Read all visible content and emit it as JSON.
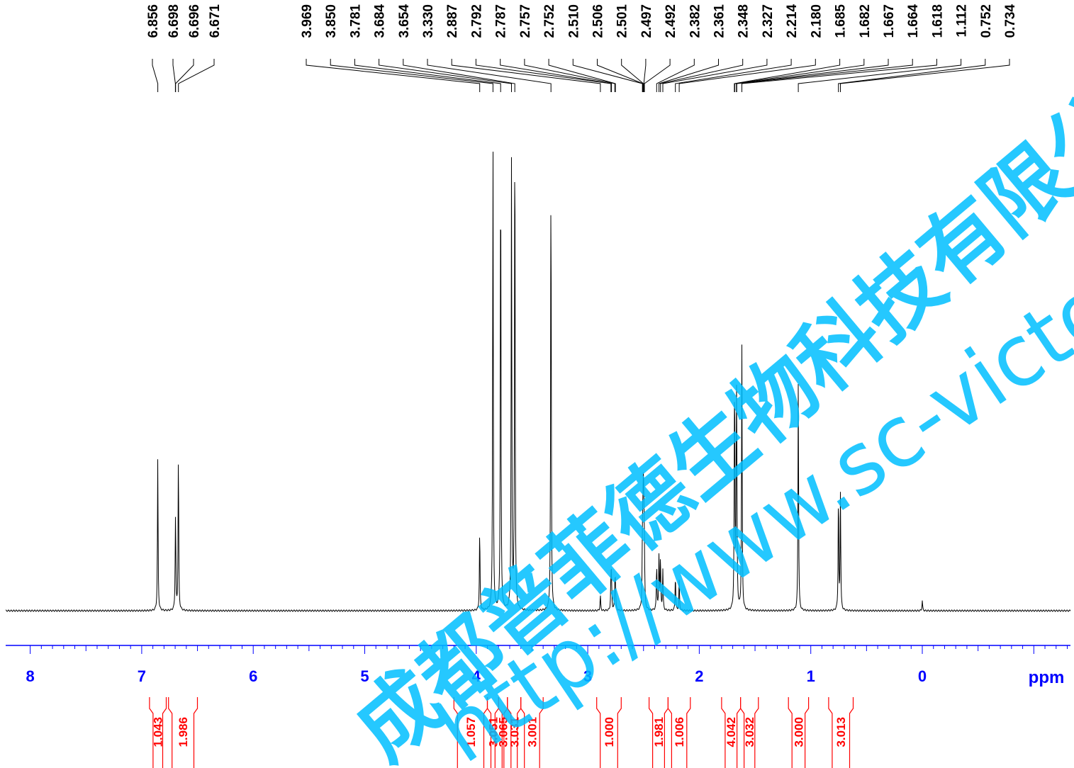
{
  "chart_data": {
    "type": "line",
    "xlabel": "ppm",
    "ylabel": "",
    "xlim": [
      8.35,
      -1.35
    ],
    "x_axis_reversed": true,
    "x_ticks": [
      8,
      7,
      6,
      5,
      4,
      3,
      2,
      1,
      0
    ],
    "grid": false,
    "legend": "none",
    "colors": {
      "spectrum": "#000000",
      "axis": "#0000ff",
      "integrals": "#ff0000",
      "peak_labels": "#000000",
      "watermark": "#00bfff"
    },
    "peak_labels": [
      "6.856",
      "6.698",
      "6.696",
      "6.671",
      "3.969",
      "3.850",
      "3.781",
      "3.684",
      "3.654",
      "3.330",
      "2.887",
      "2.792",
      "2.787",
      "2.757",
      "2.752",
      "2.510",
      "2.506",
      "2.501",
      "2.497",
      "2.492",
      "2.382",
      "2.361",
      "2.348",
      "2.327",
      "2.214",
      "2.180",
      "1.685",
      "1.682",
      "1.667",
      "1.664",
      "1.618",
      "1.112",
      "0.752",
      "0.734"
    ],
    "peaks": [
      {
        "ppm": 6.856,
        "height": 0.3
      },
      {
        "ppm": 6.698,
        "height": 0.1
      },
      {
        "ppm": 6.696,
        "height": 0.1
      },
      {
        "ppm": 6.671,
        "height": 0.31
      },
      {
        "ppm": 3.969,
        "height": 0.16
      },
      {
        "ppm": 3.85,
        "height": 0.94
      },
      {
        "ppm": 3.781,
        "height": 0.93
      },
      {
        "ppm": 3.684,
        "height": 0.88
      },
      {
        "ppm": 3.654,
        "height": 1.0
      },
      {
        "ppm": 3.33,
        "height": 0.89
      },
      {
        "ppm": 2.887,
        "height": 0.03
      },
      {
        "ppm": 2.792,
        "height": 0.06
      },
      {
        "ppm": 2.787,
        "height": 0.06
      },
      {
        "ppm": 2.757,
        "height": 0.05
      },
      {
        "ppm": 2.752,
        "height": 0.05
      },
      {
        "ppm": 2.51,
        "height": 0.09
      },
      {
        "ppm": 2.506,
        "height": 0.13
      },
      {
        "ppm": 2.501,
        "height": 0.17
      },
      {
        "ppm": 2.497,
        "height": 0.13
      },
      {
        "ppm": 2.492,
        "height": 0.09
      },
      {
        "ppm": 2.382,
        "height": 0.09
      },
      {
        "ppm": 2.361,
        "height": 0.11
      },
      {
        "ppm": 2.348,
        "height": 0.1
      },
      {
        "ppm": 2.327,
        "height": 0.08
      },
      {
        "ppm": 2.214,
        "height": 0.07
      },
      {
        "ppm": 2.18,
        "height": 0.06
      },
      {
        "ppm": 1.685,
        "height": 0.25
      },
      {
        "ppm": 1.682,
        "height": 0.25
      },
      {
        "ppm": 1.667,
        "height": 0.26
      },
      {
        "ppm": 1.664,
        "height": 0.26
      },
      {
        "ppm": 1.618,
        "height": 0.52
      },
      {
        "ppm": 1.112,
        "height": 0.46
      },
      {
        "ppm": 0.752,
        "height": 0.23
      },
      {
        "ppm": 0.734,
        "height": 0.23
      },
      {
        "ppm": 0.0,
        "height": 0.02
      }
    ],
    "integrals": [
      {
        "from": 6.93,
        "to": 6.78,
        "value": "1.043"
      },
      {
        "from": 6.76,
        "to": 6.5,
        "value": "1.986"
      },
      {
        "from": 4.2,
        "to": 3.9,
        "value": "1.057"
      },
      {
        "from": 3.9,
        "to": 3.8,
        "value": "3.051"
      },
      {
        "from": 3.8,
        "to": 3.72,
        "value": "3.065"
      },
      {
        "from": 3.72,
        "to": 3.6,
        "value": "3.031"
      },
      {
        "from": 3.6,
        "to": 3.4,
        "value": "3.001"
      },
      {
        "from": 2.92,
        "to": 2.7,
        "value": "1.000"
      },
      {
        "from": 2.45,
        "to": 2.28,
        "value": "1.981"
      },
      {
        "from": 2.28,
        "to": 2.08,
        "value": "1.006"
      },
      {
        "from": 1.8,
        "to": 1.63,
        "value": "4.042"
      },
      {
        "from": 1.63,
        "to": 1.47,
        "value": "3.032"
      },
      {
        "from": 1.2,
        "to": 1.02,
        "value": "3.000"
      },
      {
        "from": 0.84,
        "to": 0.62,
        "value": "3.013"
      }
    ]
  },
  "watermark": {
    "line1": "成都普菲德生物科技有限公司",
    "line2": "http://www.sc-victory.com"
  }
}
